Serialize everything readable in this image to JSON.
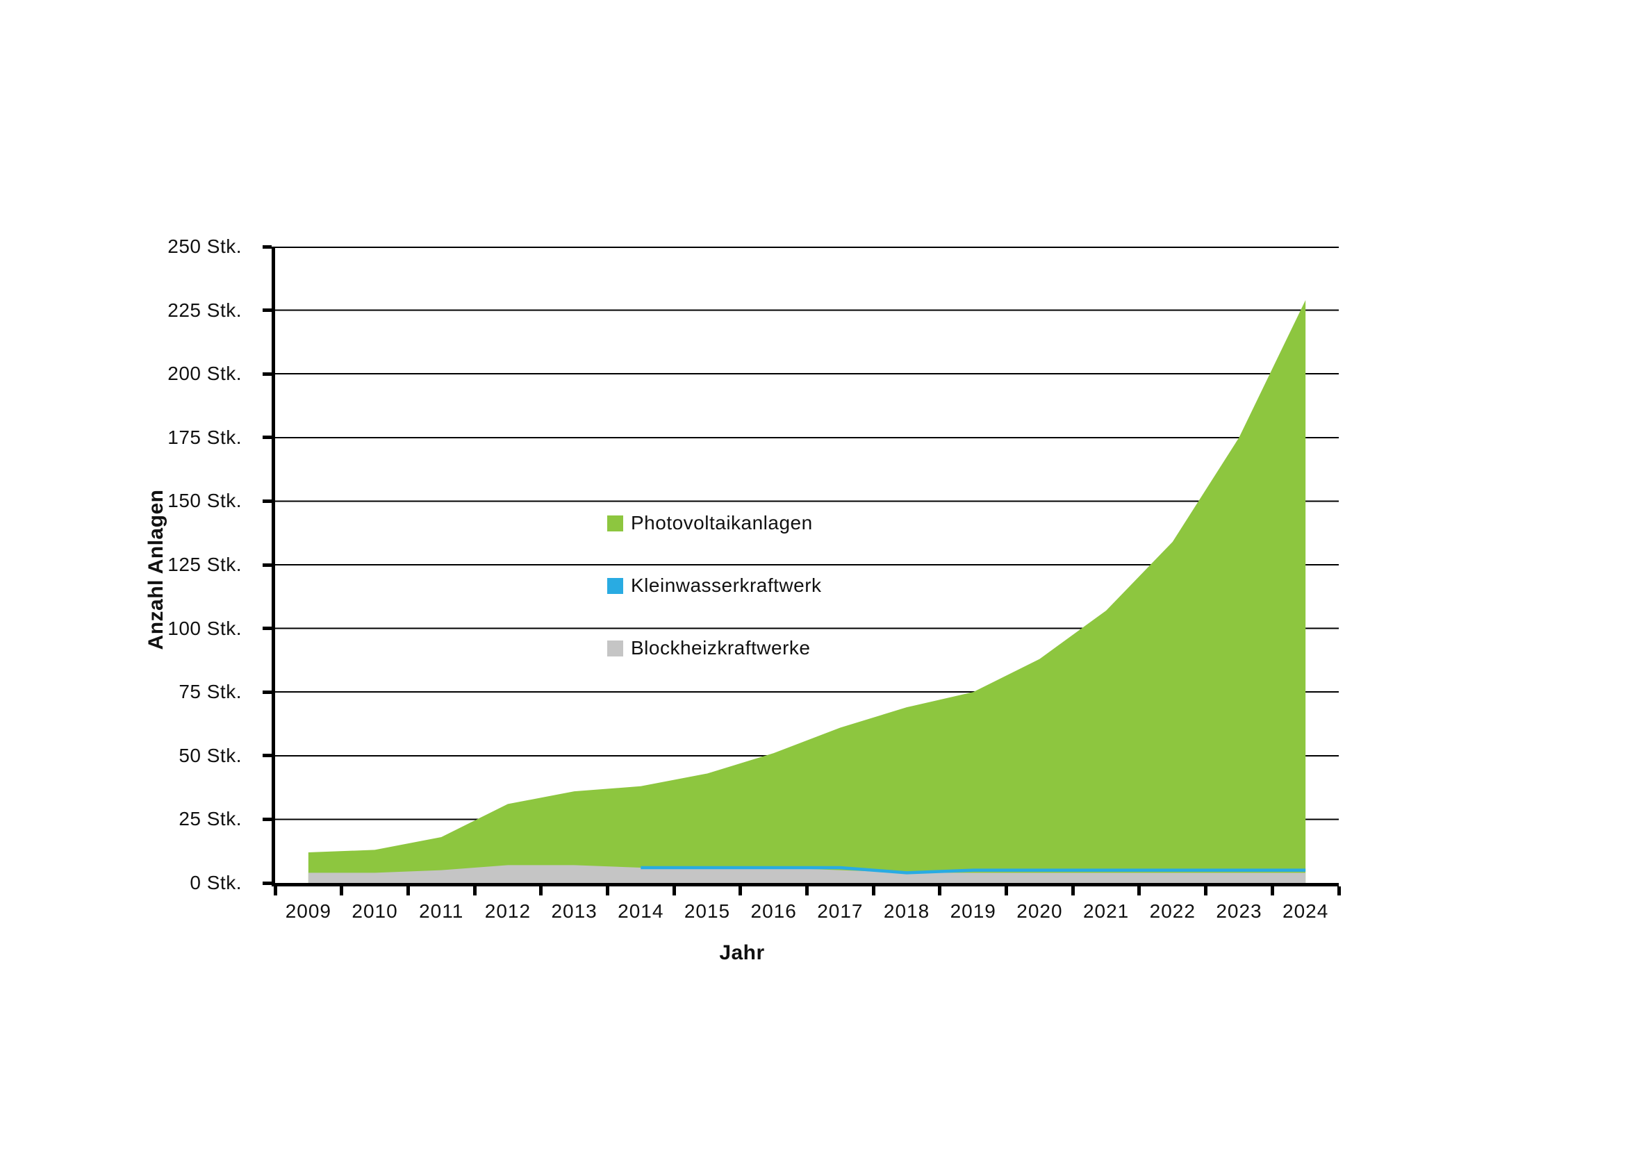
{
  "chart_data": {
    "type": "area",
    "xlabel": "Jahr",
    "ylabel": "Anzahl Anlagen",
    "categories": [
      "2009",
      "2010",
      "2011",
      "2012",
      "2013",
      "2014",
      "2015",
      "2016",
      "2017",
      "2018",
      "2019",
      "2020",
      "2021",
      "2022",
      "2023",
      "2024"
    ],
    "ylim": [
      0,
      250
    ],
    "y_step": 25,
    "y_tick_labels": [
      "0 Stk.",
      "25 Stk.",
      "50 Stk.",
      "75 Stk.",
      "100 Stk.",
      "125 Stk.",
      "150 Stk.",
      "175 Stk.",
      "200 Stk.",
      "225 Stk.",
      "250 Stk."
    ],
    "grid": "horizontal",
    "legend_position": "top-left-inside",
    "axis_color": "#000000",
    "series": [
      {
        "name": "Photovoltaikanlagen",
        "color": "#8DC63F",
        "kind": "area",
        "values": [
          12,
          13,
          18,
          31,
          36,
          38,
          43,
          51,
          61,
          69,
          75,
          88,
          107,
          134,
          175,
          229
        ]
      },
      {
        "name": "Kleinwasserkraftwerk",
        "color": "#29ABE2",
        "kind": "line",
        "values": [
          null,
          null,
          null,
          null,
          null,
          6,
          6,
          6,
          6,
          4,
          5,
          5,
          5,
          5,
          5,
          5
        ]
      },
      {
        "name": "Blockheizkraftwerke",
        "color": "#C5C5C5",
        "kind": "area",
        "values": [
          4,
          4,
          5,
          7,
          7,
          6,
          6,
          6,
          5,
          4,
          4,
          4,
          4,
          4,
          4,
          4
        ]
      }
    ]
  }
}
